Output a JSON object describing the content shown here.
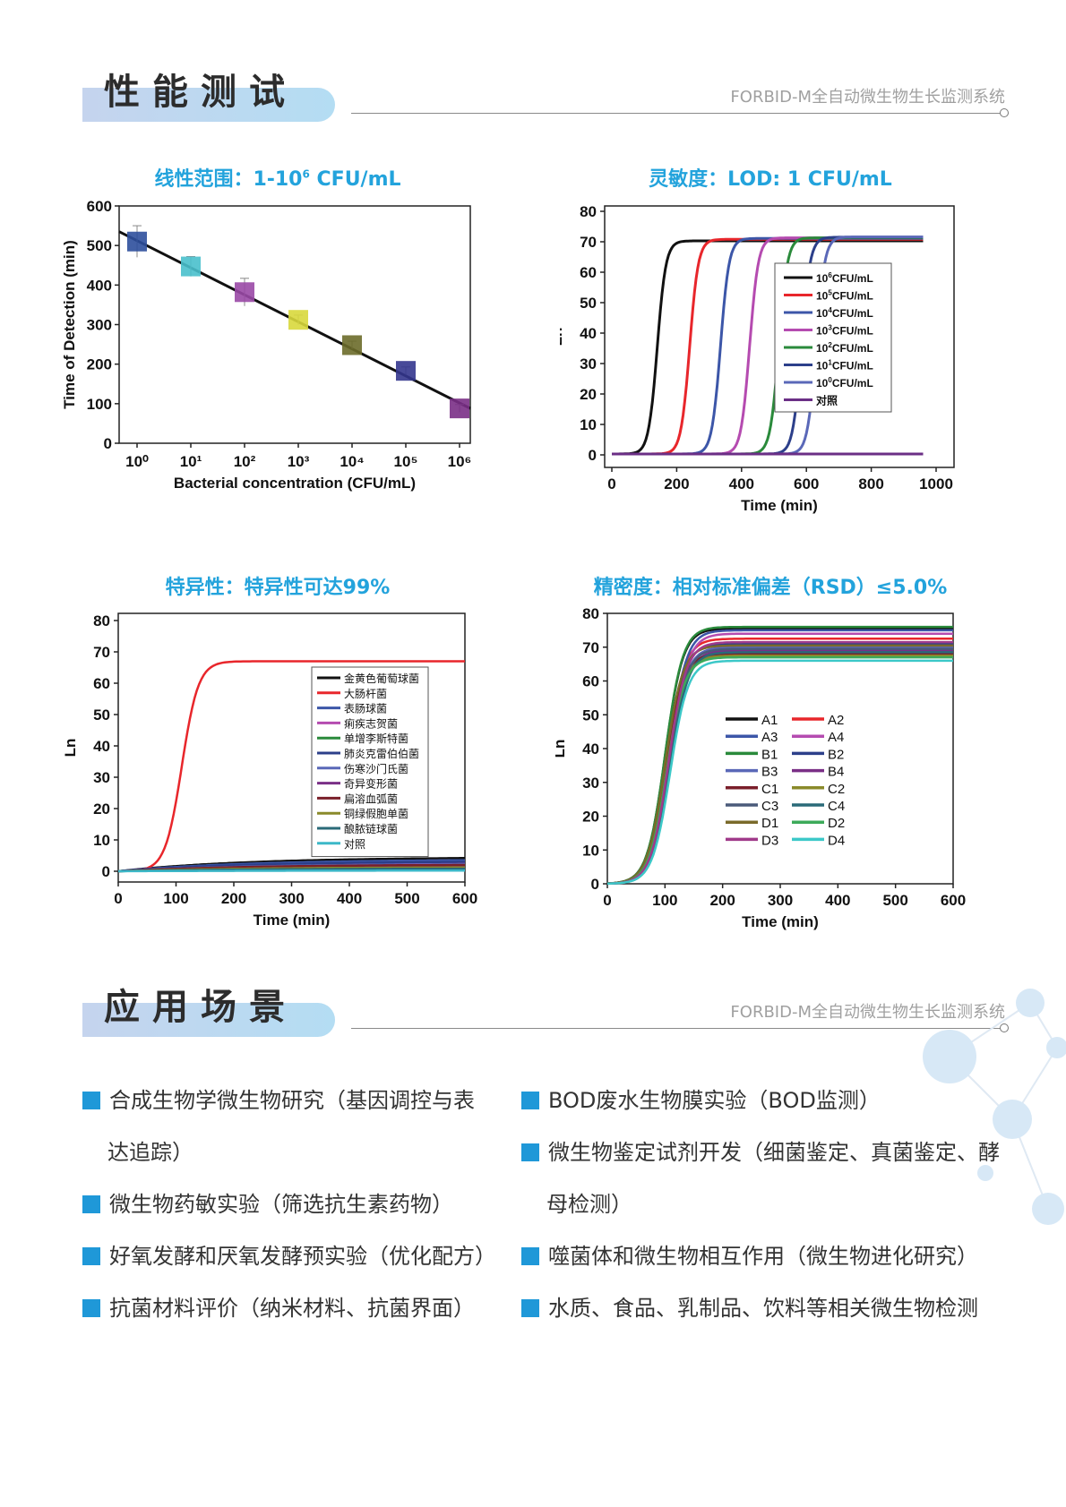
{
  "sections": {
    "performance": {
      "title": "性能测试",
      "subtitle": "FORBID-M全自动微生物生长监测系统"
    },
    "applications": {
      "title": "应用场景",
      "subtitle": "FORBID-M全自动微生物生长监测系统"
    }
  },
  "charts": {
    "linear": {
      "title_pre": "线性范围：1-10",
      "title_sup": "6",
      "title_post": " CFU/mL"
    },
    "sensitivity": {
      "title": "灵敏度：LOD: 1 CFU/mL"
    },
    "specificity": {
      "title": "特异性：特异性可达99%"
    },
    "precision": {
      "title": "精密度：相对标准偏差（RSD）≤5.0%"
    }
  },
  "chart_data": [
    {
      "type": "scatter",
      "xlabel": "Bacterial concentration (CFU/mL)",
      "ylabel": "Time of Detection (min)",
      "x_scale": "log",
      "x": [
        1,
        10,
        100,
        1000,
        10000,
        100000,
        1000000
      ],
      "x_tick_labels": [
        "10⁰",
        "10¹",
        "10²",
        "10³",
        "10⁴",
        "10⁵",
        "10⁶"
      ],
      "y": [
        510,
        447,
        382,
        312,
        248,
        183,
        88
      ],
      "y_error": [
        40,
        25,
        35,
        12,
        10,
        10,
        10
      ],
      "marker_colors": [
        "#2e4f9c",
        "#49c0cc",
        "#9a49a6",
        "#d8d83c",
        "#6b6b2a",
        "#34368e",
        "#7a2f86"
      ],
      "fit_line": {
        "from": [
          0.3,
          535
        ],
        "to": [
          1000000,
          88
        ]
      },
      "ylim": [
        0,
        600
      ],
      "y_ticks": [
        0,
        100,
        200,
        300,
        400,
        500,
        600
      ]
    },
    {
      "type": "line",
      "xlabel": "Time (min)",
      "ylabel": "Ln",
      "xlim": [
        0,
        1000
      ],
      "ylim": [
        0,
        80
      ],
      "x_ticks": [
        0,
        200,
        400,
        600,
        800,
        1000
      ],
      "y_ticks": [
        0,
        10,
        20,
        30,
        40,
        50,
        60,
        70,
        80
      ],
      "legend": "right",
      "series": [
        {
          "name_pre": "10",
          "name_sup": "6",
          "name_post": "CFU/mL",
          "color": "#111111",
          "midpoint": 140,
          "plateau": 70
        },
        {
          "name_pre": "10",
          "name_sup": "5",
          "name_post": "CFU/mL",
          "color": "#e8262b",
          "midpoint": 240,
          "plateau": 70.5
        },
        {
          "name_pre": "10",
          "name_sup": "4",
          "name_post": "CFU/mL",
          "color": "#3c56a8",
          "midpoint": 335,
          "plateau": 70.8
        },
        {
          "name_pre": "10",
          "name_sup": "3",
          "name_post": "CFU/mL",
          "color": "#b54bb0",
          "midpoint": 425,
          "plateau": 71
        },
        {
          "name_pre": "10",
          "name_sup": "2",
          "name_post": "CFU/mL",
          "color": "#2a8a3b",
          "midpoint": 515,
          "plateau": 71
        },
        {
          "name_pre": "10",
          "name_sup": "1",
          "name_post": "CFU/mL",
          "color": "#2c3f8a",
          "midpoint": 585,
          "plateau": 71.2
        },
        {
          "name_pre": "10",
          "name_sup": "0",
          "name_post": "CFU/mL",
          "color": "#5a68b8",
          "midpoint": 630,
          "plateau": 71.3
        },
        {
          "name_pre": "对照",
          "name_sup": "",
          "name_post": "",
          "color": "#6b2f86",
          "midpoint": null,
          "plateau": 0
        }
      ]
    },
    {
      "type": "line",
      "xlabel": "Time (min)",
      "ylabel": "Ln",
      "xlim": [
        0,
        600
      ],
      "ylim": [
        0,
        80
      ],
      "x_ticks": [
        0,
        100,
        200,
        300,
        400,
        500,
        600
      ],
      "y_ticks": [
        0,
        10,
        20,
        30,
        40,
        50,
        60,
        70,
        80
      ],
      "legend": "top-right",
      "series": [
        {
          "name": "金黄色葡萄球菌",
          "color": "#111111",
          "end": 4.2
        },
        {
          "name": "大肠杆菌",
          "color": "#e8262b",
          "midpoint": 110,
          "plateau": 67
        },
        {
          "name": "表肠球菌",
          "color": "#3c56a8",
          "end": 3.5
        },
        {
          "name": "痢疾志贺菌",
          "color": "#b54bb0",
          "end": 2.6
        },
        {
          "name": "单增李斯特菌",
          "color": "#2a8a3b",
          "end": 1.0
        },
        {
          "name": "肺炎克雷伯伯菌",
          "color": "#2c3f8a",
          "end": 3.0
        },
        {
          "name": "伤寒沙门氏菌",
          "color": "#5a68b8",
          "end": 2.2
        },
        {
          "name": "奇异变形菌",
          "color": "#7a2f86",
          "end": 1.6
        },
        {
          "name": "扁溶血弧菌",
          "color": "#7a1f2a",
          "end": 2.0
        },
        {
          "name": "铜绿假胞单菌",
          "color": "#8a8a2a",
          "end": 1.2
        },
        {
          "name": "酿脓链球菌",
          "color": "#2a6a78",
          "end": 0.8
        },
        {
          "name": "对照",
          "color": "#3cb8c8",
          "end": 0.2
        }
      ]
    },
    {
      "type": "line",
      "xlabel": "Time (min)",
      "ylabel": "Ln",
      "xlim": [
        0,
        600
      ],
      "ylim": [
        0,
        80
      ],
      "x_ticks": [
        0,
        100,
        200,
        300,
        400,
        500,
        600
      ],
      "y_ticks": [
        0,
        10,
        20,
        30,
        40,
        50,
        60,
        70,
        80
      ],
      "legend": "center-left",
      "series": [
        {
          "name": "A1",
          "color": "#111111",
          "plateau": 75.5
        },
        {
          "name": "A2",
          "color": "#e8262b",
          "plateau": 72.5
        },
        {
          "name": "A3",
          "color": "#3c56a8",
          "plateau": 75
        },
        {
          "name": "A4",
          "color": "#b54bb0",
          "plateau": 74
        },
        {
          "name": "B1",
          "color": "#2a8a3b",
          "plateau": 76
        },
        {
          "name": "B2",
          "color": "#2c3f8a",
          "plateau": 71
        },
        {
          "name": "B3",
          "color": "#5a68b8",
          "plateau": 70
        },
        {
          "name": "B4",
          "color": "#7a2f86",
          "plateau": 69
        },
        {
          "name": "C1",
          "color": "#7a1f2a",
          "plateau": 68
        },
        {
          "name": "C2",
          "color": "#8a8a2a",
          "plateau": 67.5
        },
        {
          "name": "C3",
          "color": "#4a5a7a",
          "plateau": 69.5
        },
        {
          "name": "C4",
          "color": "#2a6a78",
          "plateau": 68.5
        },
        {
          "name": "D1",
          "color": "#7a6a2a",
          "plateau": 70.5
        },
        {
          "name": "D2",
          "color": "#3caa5a",
          "plateau": 67
        },
        {
          "name": "D3",
          "color": "#a03a8a",
          "plateau": 71.5
        },
        {
          "name": "D4",
          "color": "#3cc8c8",
          "plateau": 66
        }
      ]
    }
  ],
  "applications": {
    "left": [
      {
        "text": "合成生物学微生物研究（基因调控与表",
        "cont": "达追踪）"
      },
      {
        "text": "微生物药敏实验（筛选抗生素药物）",
        "cont": ""
      },
      {
        "text": "好氧发酵和厌氧发酵预实验（优化配方）",
        "cont": ""
      },
      {
        "text": "抗菌材料评价（纳米材料、抗菌界面）",
        "cont": ""
      }
    ],
    "right": [
      {
        "text": "BOD废水生物膜实验（BOD监测）",
        "cont": ""
      },
      {
        "text": "微生物鉴定试剂开发（细菌鉴定、真菌鉴定、酵",
        "cont": "母检测）"
      },
      {
        "text": "噬菌体和微生物相互作用（微生物进化研究）",
        "cont": ""
      },
      {
        "text": "水质、食品、乳制品、饮料等相关微生物检测",
        "cont": ""
      }
    ]
  }
}
